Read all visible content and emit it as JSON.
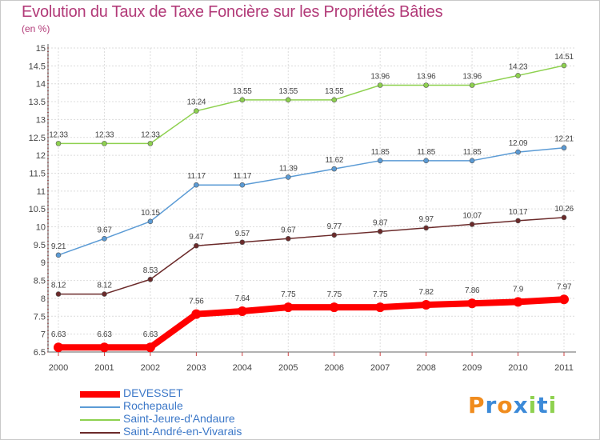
{
  "chart_data": {
    "type": "line",
    "title": "Evolution du Taux de Taxe Foncière sur les Propriétés Bâties",
    "subtitle": "(en %)",
    "xlabel": "",
    "ylabel": "",
    "x": [
      "2000",
      "2001",
      "2002",
      "2003",
      "2004",
      "2005",
      "2006",
      "2007",
      "2008",
      "2009",
      "2010",
      "2011"
    ],
    "ylim": [
      6.5,
      15
    ],
    "yticks": [
      "6.5",
      "7",
      "7.5",
      "8",
      "8.5",
      "9",
      "9.5",
      "10",
      "10.5",
      "11",
      "11.5",
      "12",
      "12.5",
      "13",
      "13.5",
      "14",
      "14.5",
      "15"
    ],
    "grid": true,
    "legend_position": "bottom-left",
    "series": [
      {
        "name": "DEVESSET",
        "color": "#ff0000",
        "values": [
          6.63,
          6.63,
          6.63,
          7.56,
          7.64,
          7.75,
          7.75,
          7.75,
          7.82,
          7.86,
          7.9,
          7.97
        ],
        "labels": [
          "6.63",
          "6.63",
          "6.63",
          "7.56",
          "7.64",
          "7.75",
          "7.75",
          "7.75",
          "7.82",
          "7.86",
          "7.9",
          "7.97"
        ]
      },
      {
        "name": "Rochepaule",
        "color": "#5b9bd5",
        "values": [
          9.21,
          9.67,
          10.15,
          11.17,
          11.17,
          11.39,
          11.62,
          11.85,
          11.85,
          11.85,
          12.09,
          12.21
        ],
        "labels": [
          "9.21",
          "9.67",
          "10.15",
          "11.17",
          "11.17",
          "11.39",
          "11.62",
          "11.85",
          "11.85",
          "11.85",
          "12.09",
          "12.21"
        ]
      },
      {
        "name": "Saint-Jeure-d'Andaure",
        "color": "#8ed14f",
        "values": [
          12.33,
          12.33,
          12.33,
          13.24,
          13.55,
          13.55,
          13.55,
          13.96,
          13.96,
          13.96,
          14.23,
          14.51
        ],
        "labels": [
          "12.33",
          "12.33",
          "12.33",
          "13.24",
          "13.55",
          "13.55",
          "13.55",
          "13.96",
          "13.96",
          "13.96",
          "14.23",
          "14.51"
        ]
      },
      {
        "name": "Saint-André-en-Vivarais",
        "color": "#6b2a2a",
        "values": [
          8.12,
          8.12,
          8.53,
          9.47,
          9.57,
          9.67,
          9.77,
          9.87,
          9.97,
          10.07,
          10.17,
          10.26
        ],
        "labels": [
          "8.12",
          "8.12",
          "8.53",
          "9.47",
          "9.57",
          "9.67",
          "9.77",
          "9.87",
          "9.97",
          "10.07",
          "10.17",
          "10.26"
        ]
      }
    ]
  },
  "logo": {
    "letters": [
      {
        "char": "P",
        "color": "#f08c1e"
      },
      {
        "char": "r",
        "color": "#3c8ad8"
      },
      {
        "char": "o",
        "color": "#f08c1e"
      },
      {
        "char": "x",
        "color": "#3c8ad8"
      },
      {
        "char": "i",
        "color": "#8ed14f"
      },
      {
        "char": "t",
        "color": "#3c8ad8"
      },
      {
        "char": "i",
        "color": "#8ed14f"
      }
    ]
  }
}
